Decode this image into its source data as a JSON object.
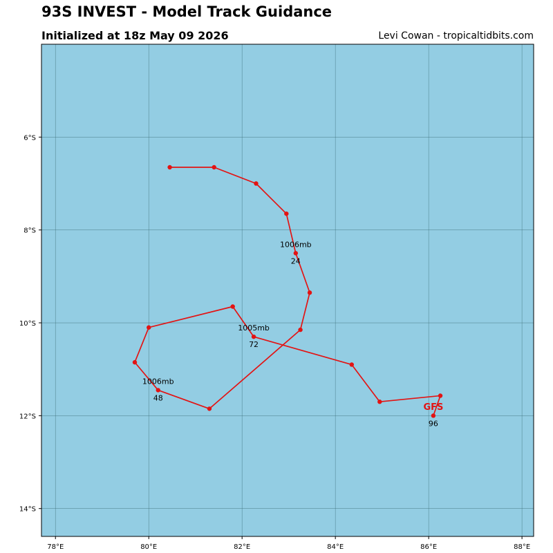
{
  "header": {
    "title": "93S INVEST - Model Track Guidance",
    "subtitle": "Initialized at 18z May 09 2026",
    "credit": "Levi Cowan - tropicaltidbits.com"
  },
  "colors": {
    "ocean": "#93cde3",
    "grid": "#3d6f78",
    "track": "#e31313"
  },
  "chart_data": {
    "type": "scatter",
    "title": "93S INVEST - Model Track Guidance",
    "xlabel": "",
    "ylabel": "",
    "xlim": [
      77.7,
      88.25
    ],
    "ylim": [
      -14.6,
      -4.0
    ],
    "grid": true,
    "x_ticks": [
      78,
      80,
      82,
      84,
      86,
      88
    ],
    "x_tick_labels": [
      "78°E",
      "80°E",
      "82°E",
      "84°E",
      "86°E",
      "88°E"
    ],
    "y_ticks": [
      -6,
      -8,
      -10,
      -12,
      -14
    ],
    "y_tick_labels": [
      "6°S",
      "8°S",
      "10°S",
      "12°S",
      "14°S"
    ],
    "series": [
      {
        "name": "GFS",
        "points": [
          {
            "lon": 80.45,
            "lat": -6.65
          },
          {
            "lon": 81.4,
            "lat": -6.65
          },
          {
            "lon": 82.3,
            "lat": -7.0
          },
          {
            "lon": 82.95,
            "lat": -7.65
          },
          {
            "lon": 83.15,
            "lat": -8.5
          },
          {
            "lon": 83.45,
            "lat": -9.35
          },
          {
            "lon": 83.25,
            "lat": -10.15
          },
          {
            "lon": 81.3,
            "lat": -11.85
          },
          {
            "lon": 80.2,
            "lat": -11.45
          },
          {
            "lon": 79.7,
            "lat": -10.85
          },
          {
            "lon": 80.0,
            "lat": -10.1
          },
          {
            "lon": 81.8,
            "lat": -9.65
          },
          {
            "lon": 82.25,
            "lat": -10.3
          },
          {
            "lon": 84.35,
            "lat": -10.9
          },
          {
            "lon": 84.95,
            "lat": -11.7
          },
          {
            "lon": 86.25,
            "lat": -11.57
          },
          {
            "lon": 86.1,
            "lat": -12.0
          }
        ]
      }
    ],
    "annotations": [
      {
        "lon": 83.15,
        "lat": -8.5,
        "pressure": "1006mb",
        "hour": "24"
      },
      {
        "lon": 80.2,
        "lat": -11.45,
        "pressure": "1006mb",
        "hour": "48"
      },
      {
        "lon": 82.25,
        "lat": -10.3,
        "pressure": "1005mb",
        "hour": "72"
      },
      {
        "lon": 86.1,
        "lat": -12.0,
        "pressure": "",
        "hour": "96"
      }
    ],
    "model_label": {
      "text": "GFS",
      "lon": 86.1,
      "lat": -11.8
    }
  }
}
